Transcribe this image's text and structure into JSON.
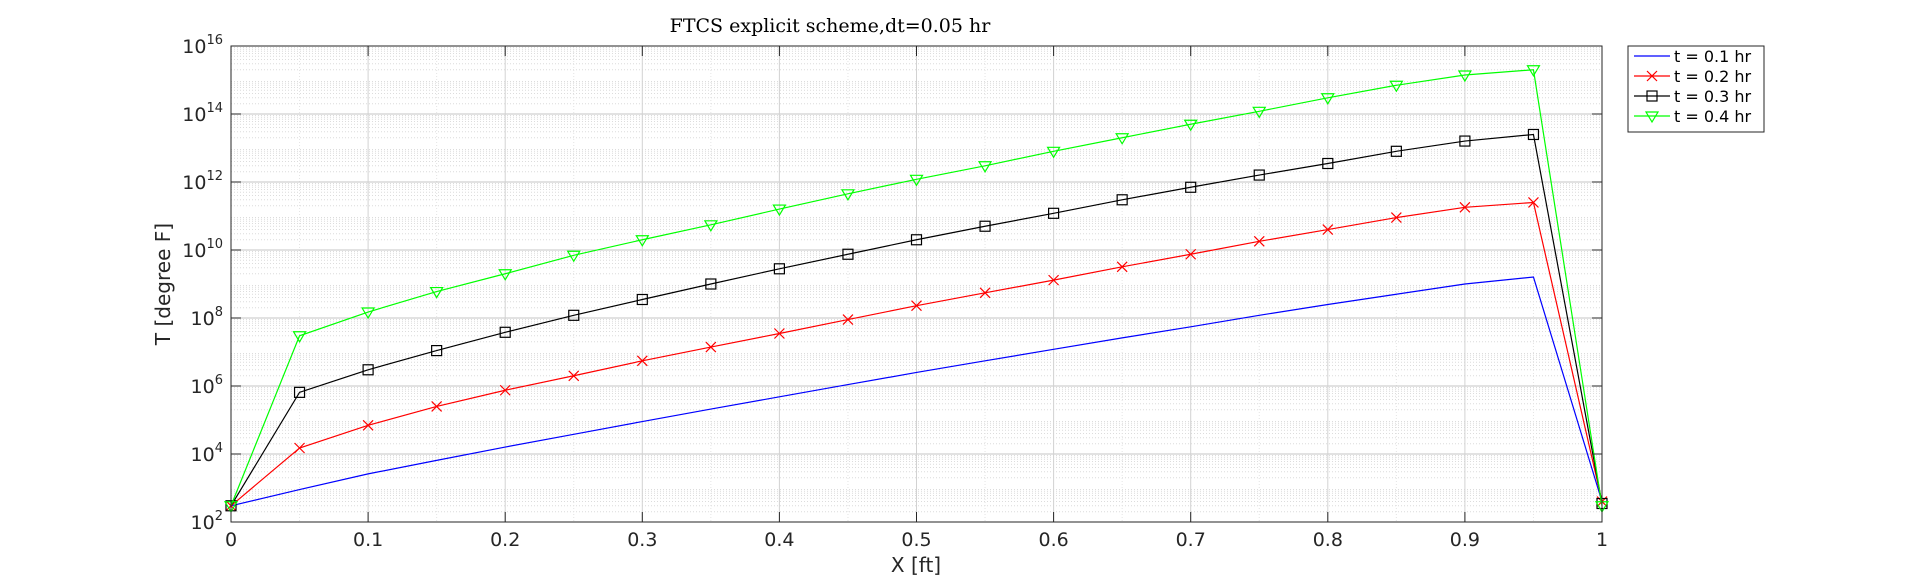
{
  "chart_data": {
    "type": "line",
    "title": "FTCS explicit scheme,dt=0.05 hr",
    "xlabel": "X [ft]",
    "ylabel": "T [degree F]",
    "xlim": [
      0,
      1
    ],
    "ylim": [
      100,
      10000000000000000
    ],
    "y_scale": "log",
    "grid": true,
    "minor_grid": true,
    "legend_position": "outside-top-right",
    "x_ticks": [
      "0",
      "0.1",
      "0.2",
      "0.3",
      "0.4",
      "0.5",
      "0.6",
      "0.7",
      "0.8",
      "0.9",
      "1"
    ],
    "y_ticks": [
      {
        "base": "10",
        "exp": "2"
      },
      {
        "base": "10",
        "exp": "4"
      },
      {
        "base": "10",
        "exp": "6"
      },
      {
        "base": "10",
        "exp": "8"
      },
      {
        "base": "10",
        "exp": "10"
      },
      {
        "base": "10",
        "exp": "12"
      },
      {
        "base": "10",
        "exp": "14"
      },
      {
        "base": "10",
        "exp": "16"
      }
    ],
    "x": [
      0,
      0.05,
      0.1,
      0.15,
      0.2,
      0.25,
      0.3,
      0.35,
      0.4,
      0.45,
      0.5,
      0.55,
      0.6,
      0.65,
      0.7,
      0.75,
      0.8,
      0.85,
      0.9,
      0.95,
      1
    ],
    "series": [
      {
        "name": "t = 0.1 hr",
        "color": "#0000ff",
        "marker": "none",
        "values": [
          300,
          900,
          2600,
          6500,
          16000,
          38000,
          90000,
          210000,
          480000,
          1100000,
          2500000,
          5500000,
          12000000,
          26000000,
          55000000,
          120000000,
          250000000,
          500000000,
          1000000000,
          1600000000,
          400
        ]
      },
      {
        "name": "t = 0.2 hr",
        "color": "#ff0000",
        "marker": "x",
        "values": [
          300,
          15000,
          70000,
          250000,
          750000,
          2000000,
          5500000,
          14000000,
          35000000,
          90000000,
          230000000,
          550000000,
          1300000000,
          3200000000,
          7500000000,
          18000000000,
          40000000000,
          90000000000,
          180000000000,
          250000000000,
          400
        ]
      },
      {
        "name": "t = 0.3 hr",
        "color": "#000000",
        "marker": "square",
        "values": [
          300,
          650000,
          3000000,
          11000000,
          38000000,
          120000000,
          350000000,
          1000000000,
          2800000000,
          7500000000,
          20000000000,
          50000000000,
          120000000000,
          300000000000,
          700000000000,
          1600000000000,
          3500000000000,
          8000000000000,
          16000000000000,
          25000000000000,
          350
        ]
      },
      {
        "name": "t = 0.4 hr",
        "color": "#00ff00",
        "marker": "triangle-down",
        "values": [
          300,
          30000000,
          150000000,
          600000000,
          2000000000,
          7000000000,
          20000000000,
          55000000000,
          160000000000,
          450000000000,
          1200000000000,
          3000000000000,
          8000000000000,
          20000000000000,
          50000000000000,
          120000000000000,
          300000000000000,
          700000000000000,
          1400000000000000,
          2000000000000000,
          300
        ]
      }
    ]
  }
}
